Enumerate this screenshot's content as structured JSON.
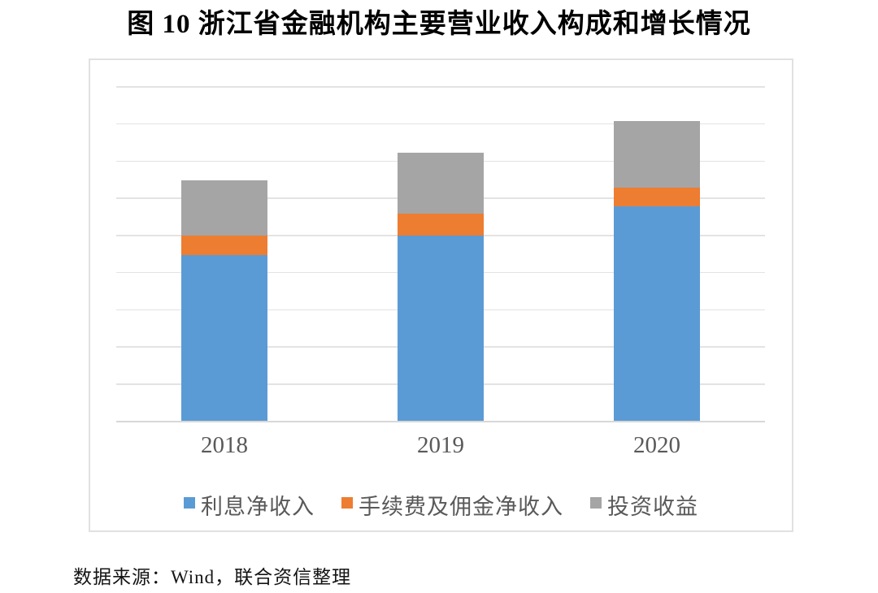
{
  "title": "图 10 浙江省金融机构主要营业收入构成和增长情况",
  "source_note": "数据来源：Wind，联合资信整理",
  "colors": {
    "series_blue": "#5B9BD5",
    "series_orange": "#ED7D31",
    "series_gray": "#A5A5A5",
    "gridline": "#E3E3E3",
    "axis_line": "#D8D8D8",
    "chart_border": "#E1E1E1",
    "label_text": "#595959",
    "title_text": "#000000"
  },
  "chart_data": {
    "type": "bar",
    "stacked": true,
    "title": "图 10 浙江省金融机构主要营业收入构成和增长情况",
    "categories": [
      "2018",
      "2019",
      "2020"
    ],
    "series": [
      {
        "name": "利息净收入",
        "key": "interest-net-income",
        "color": "#5B9BD5",
        "values": [
          2230,
          2490,
          2880
        ]
      },
      {
        "name": "手续费及佣金净收入",
        "key": "fee-commission-net-income",
        "color": "#ED7D31",
        "values": [
          265,
          295,
          255
        ]
      },
      {
        "name": "投资收益",
        "key": "investment-income",
        "color": "#A5A5A5",
        "values": [
          735,
          815,
          895
        ]
      }
    ],
    "xlabel": "",
    "ylabel": "",
    "ylim": [
      0,
      4500
    ],
    "gridline_interval": 500,
    "y_tick_labels_visible": false,
    "grid": true,
    "legend_position": "bottom",
    "bar_gap_ratio": 1.5,
    "values_estimated_from_gridlines": true
  }
}
